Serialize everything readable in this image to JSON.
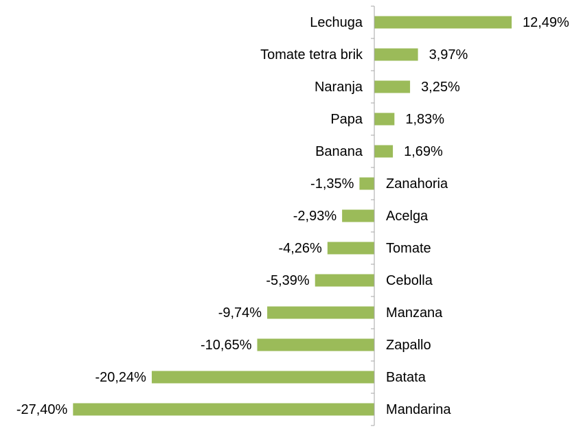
{
  "chart_data": {
    "type": "barh",
    "categories": [
      "Lechuga",
      "Tomate tetra brik",
      "Naranja",
      "Papa",
      "Banana",
      "Zanahoria",
      "Acelga",
      "Tomate",
      "Cebolla",
      "Manzana",
      "Zapallo",
      "Batata",
      "Mandarina"
    ],
    "values": [
      12.49,
      3.97,
      3.25,
      1.83,
      1.69,
      -1.35,
      -2.93,
      -4.26,
      -5.39,
      -9.74,
      -10.65,
      -20.24,
      -27.4
    ],
    "value_labels": [
      "12,49%",
      "3,97%",
      "3,25%",
      "1,83%",
      "1,69%",
      "-1,35%",
      "-2,93%",
      "-4,26%",
      "-5,39%",
      "-9,74%",
      "-10,65%",
      "-20,24%",
      "-27,40%"
    ],
    "color": "#9bbb59",
    "xlim": [
      -30,
      15
    ]
  }
}
